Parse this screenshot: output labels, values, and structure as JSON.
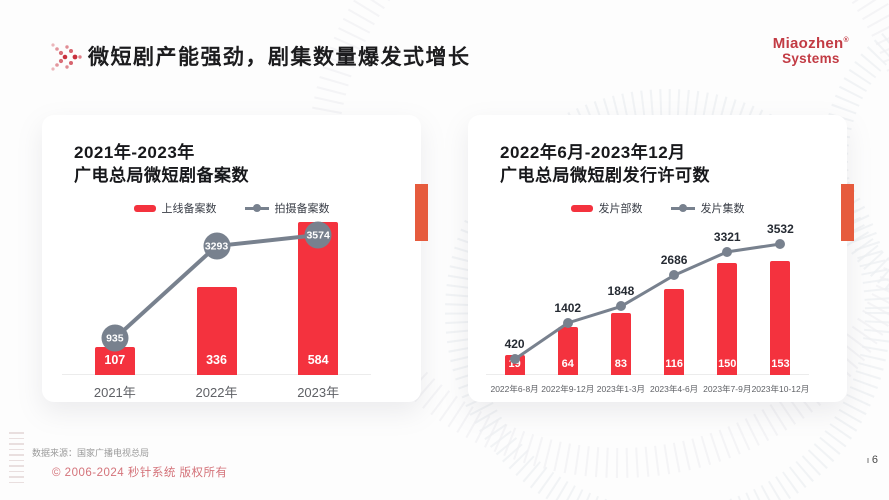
{
  "slide": {
    "title": "微短剧产能强劲，剧集数量爆发式增长",
    "logo": {
      "line1": "Miaozhen",
      "reg_mark": "®",
      "line2": "Systems"
    },
    "source_note": "数据来源：国家广播电视总局",
    "copyright": "© 2006-2024 秒针系统 版权所有",
    "page_number": "6"
  },
  "colors": {
    "bar_red": "#F4323E",
    "line_gray": "#78818E",
    "accent_orange": "#E65B3D",
    "logo_red": "#C23B44",
    "copyright_red": "#D4737A",
    "title_dark": "#1C1C1E"
  },
  "chart_data": [
    {
      "type": "bar+line",
      "title_line1": "2021年-2023年",
      "title_line2": "广电总局微短剧备案数",
      "categories": [
        "2021年",
        "2022年",
        "2023年"
      ],
      "series": [
        {
          "name": "上线备案数",
          "kind": "bar",
          "values": [
            107,
            336,
            584
          ]
        },
        {
          "name": "拍摄备案数",
          "kind": "line",
          "values": [
            935,
            3293,
            3574
          ]
        }
      ],
      "bar_axis_max": 611,
      "line_axis_max": 4085,
      "line_label_style": "bubble",
      "legend_position": "top-center",
      "grid": false
    },
    {
      "type": "bar+line",
      "title_line1": "2022年6月-2023年12月",
      "title_line2": "广电总局微短剧发行许可数",
      "categories": [
        "2022年6-8月",
        "2022年9-12月",
        "2023年1-3月",
        "2023年4-6月",
        "2023年7-9月",
        "2023年10-12月"
      ],
      "series": [
        {
          "name": "发片部数",
          "kind": "bar",
          "values": [
            19,
            64,
            83,
            116,
            150,
            153
          ]
        },
        {
          "name": "发片集数",
          "kind": "line",
          "values": [
            420,
            1402,
            1848,
            2686,
            3321,
            3532
          ]
        }
      ],
      "bar_axis_max": 215,
      "line_axis_max": 4314,
      "line_label_style": "above",
      "legend_position": "top-center",
      "grid": false
    }
  ]
}
